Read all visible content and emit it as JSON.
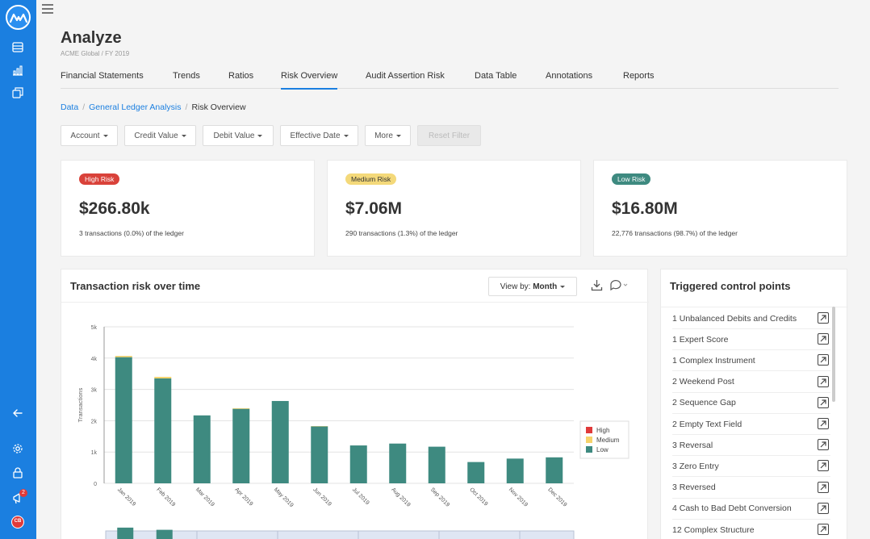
{
  "app": {
    "title": "Analyze",
    "subtitle": "ACME Global / FY 2019",
    "avatar_initials": "CB",
    "notification_count": "2"
  },
  "tabs": [
    {
      "label": "Financial Statements"
    },
    {
      "label": "Trends"
    },
    {
      "label": "Ratios"
    },
    {
      "label": "Risk Overview",
      "active": true
    },
    {
      "label": "Audit Assertion Risk"
    },
    {
      "label": "Data Table"
    },
    {
      "label": "Annotations"
    },
    {
      "label": "Reports"
    }
  ],
  "breadcrumb": [
    "Data",
    "General Ledger Analysis",
    "Risk Overview"
  ],
  "filters": {
    "account": "Account",
    "credit": "Credit Value",
    "debit": "Debit Value",
    "effective_date": "Effective Date",
    "more": "More",
    "reset": "Reset Filter"
  },
  "kpis": {
    "high": {
      "badge": "High Risk",
      "value": "$266.80k",
      "sub": "3 transactions (0.0%) of the ledger"
    },
    "medium": {
      "badge": "Medium Risk",
      "value": "$7.06M",
      "sub": "290 transactions (1.3%) of the ledger"
    },
    "low": {
      "badge": "Low Risk",
      "value": "$16.80M",
      "sub": "22,776 transactions (98.7%) of the ledger"
    }
  },
  "chart_panel": {
    "title": "Transaction risk over time",
    "view_by_label": "View by:",
    "view_by_value": "Month"
  },
  "chart_data": {
    "type": "bar",
    "stacked": true,
    "categories": [
      "Jan 2019",
      "Feb 2019",
      "Mar 2019",
      "Apr 2019",
      "May 2019",
      "Jun 2019",
      "Jul 2019",
      "Aug 2019",
      "Sep 2019",
      "Oct 2019",
      "Nov 2019",
      "Dec 2019"
    ],
    "series": [
      {
        "name": "High",
        "color": "#e03a3a",
        "values": [
          0,
          0,
          0,
          0,
          0,
          0,
          0,
          0,
          0,
          0,
          0,
          0
        ]
      },
      {
        "name": "Medium",
        "color": "#f6d36b",
        "values": [
          40,
          50,
          0,
          20,
          0,
          10,
          0,
          0,
          0,
          0,
          0,
          0
        ]
      },
      {
        "name": "Low",
        "color": "#3e8a80",
        "values": [
          4030,
          3350,
          2170,
          2380,
          2630,
          1820,
          1210,
          1270,
          1170,
          680,
          790,
          830
        ]
      }
    ],
    "ylabel": "Transactions",
    "ylim": [
      0,
      5000
    ],
    "yticks": [
      "0",
      "1k",
      "2k",
      "3k",
      "4k",
      "5k"
    ],
    "legend": "right"
  },
  "control_panel": {
    "title": "Triggered control points",
    "items": [
      "1 Unbalanced Debits and Credits",
      "1 Expert Score",
      "1 Complex Instrument",
      "2 Weekend Post",
      "2 Sequence Gap",
      "2 Empty Text Field",
      "3 Reversal",
      "3 Zero Entry",
      "3 Reversed",
      "4 Cash to Bad Debt Conversion",
      "12 Complex Structure"
    ]
  }
}
